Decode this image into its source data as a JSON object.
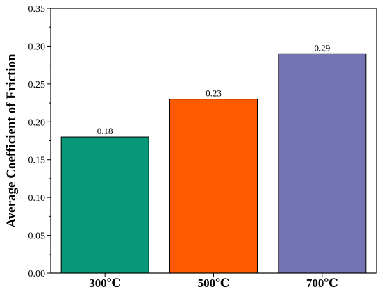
{
  "chart_data": {
    "type": "bar",
    "categories": [
      "300℃",
      "500℃",
      "700℃"
    ],
    "values": [
      0.18,
      0.23,
      0.29
    ],
    "data_labels": [
      "0.18",
      "0.23",
      "0.29"
    ],
    "colors": [
      "#07987a",
      "#ff5a00",
      "#7474b4"
    ],
    "title": "",
    "xlabel": "",
    "ylabel": "Average Coefficient of Friction",
    "ylim": [
      0,
      0.35
    ],
    "yticks": [
      "0.00",
      "0.05",
      "0.10",
      "0.15",
      "0.20",
      "0.25",
      "0.30",
      "0.35"
    ],
    "grid": false,
    "legend": "none"
  }
}
